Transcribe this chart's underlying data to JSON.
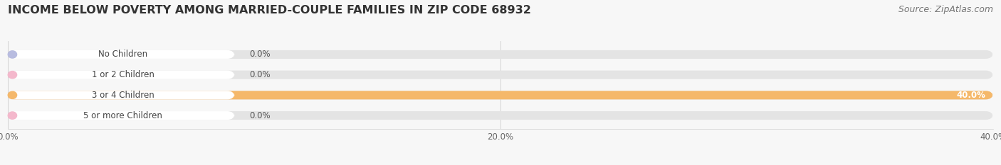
{
  "title": "INCOME BELOW POVERTY AMONG MARRIED-COUPLE FAMILIES IN ZIP CODE 68932",
  "source": "Source: ZipAtlas.com",
  "categories": [
    "No Children",
    "1 or 2 Children",
    "3 or 4 Children",
    "5 or more Children"
  ],
  "values": [
    0.0,
    0.0,
    40.0,
    0.0
  ],
  "bar_colors": [
    "#a0a8d8",
    "#f0a0b8",
    "#f5b86a",
    "#f0a0b8"
  ],
  "label_circle_colors": [
    "#b8bce0",
    "#f4b8cc",
    "#f5b86a",
    "#f4b8cc"
  ],
  "xlim": [
    0,
    40.0
  ],
  "xticks": [
    0.0,
    20.0,
    40.0
  ],
  "xtick_labels": [
    "0.0%",
    "20.0%",
    "40.0%"
  ],
  "background_color": "#f7f7f7",
  "bar_bg_color": "#e4e4e4",
  "title_fontsize": 11.5,
  "source_fontsize": 9,
  "label_fontsize": 8.5,
  "value_fontsize": 8.5
}
